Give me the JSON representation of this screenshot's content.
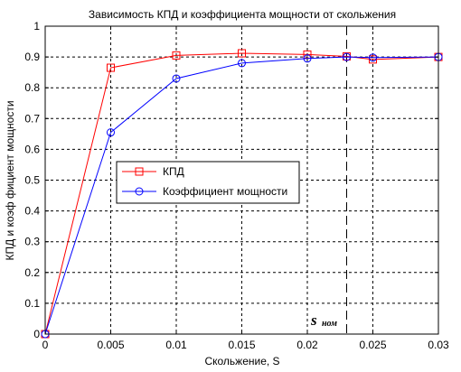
{
  "chart_data": {
    "type": "line",
    "title": "Зависимость КПД и коэффициента мощности от скольжения",
    "xlabel": "Скольжение, S",
    "ylabel": "КПД и коэф фициент мощности",
    "x": [
      0,
      0.005,
      0.01,
      0.015,
      0.02,
      0.023,
      0.025,
      0.03
    ],
    "xlim": [
      0,
      0.03
    ],
    "ylim": [
      0,
      1
    ],
    "xticks": [
      "0",
      "0.005",
      "0.01",
      "0.015",
      "0.02",
      "0.025",
      "0.03"
    ],
    "xtick_values": [
      0,
      0.005,
      0.01,
      0.015,
      0.02,
      0.025,
      0.03
    ],
    "yticks": [
      "0",
      "0.1",
      "0.2",
      "0.3",
      "0.4",
      "0.5",
      "0.6",
      "0.7",
      "0.8",
      "0.9",
      "1"
    ],
    "ytick_values": [
      0,
      0.1,
      0.2,
      0.3,
      0.4,
      0.5,
      0.6,
      0.7,
      0.8,
      0.9,
      1
    ],
    "grid": true,
    "legend_position": "left-middle",
    "series": [
      {
        "name": "КПД",
        "color": "#ff0000",
        "marker": "square",
        "values": [
          0,
          0.865,
          0.905,
          0.912,
          0.908,
          0.902,
          0.892,
          0.9
        ]
      },
      {
        "name": "Коэффициент мощности",
        "color": "#0000ff",
        "marker": "circle",
        "values": [
          0,
          0.655,
          0.83,
          0.88,
          0.895,
          0.9,
          0.898,
          0.9
        ]
      }
    ],
    "annotation": {
      "text_main": "s",
      "text_sub": "ном",
      "x": 0.023
    }
  }
}
